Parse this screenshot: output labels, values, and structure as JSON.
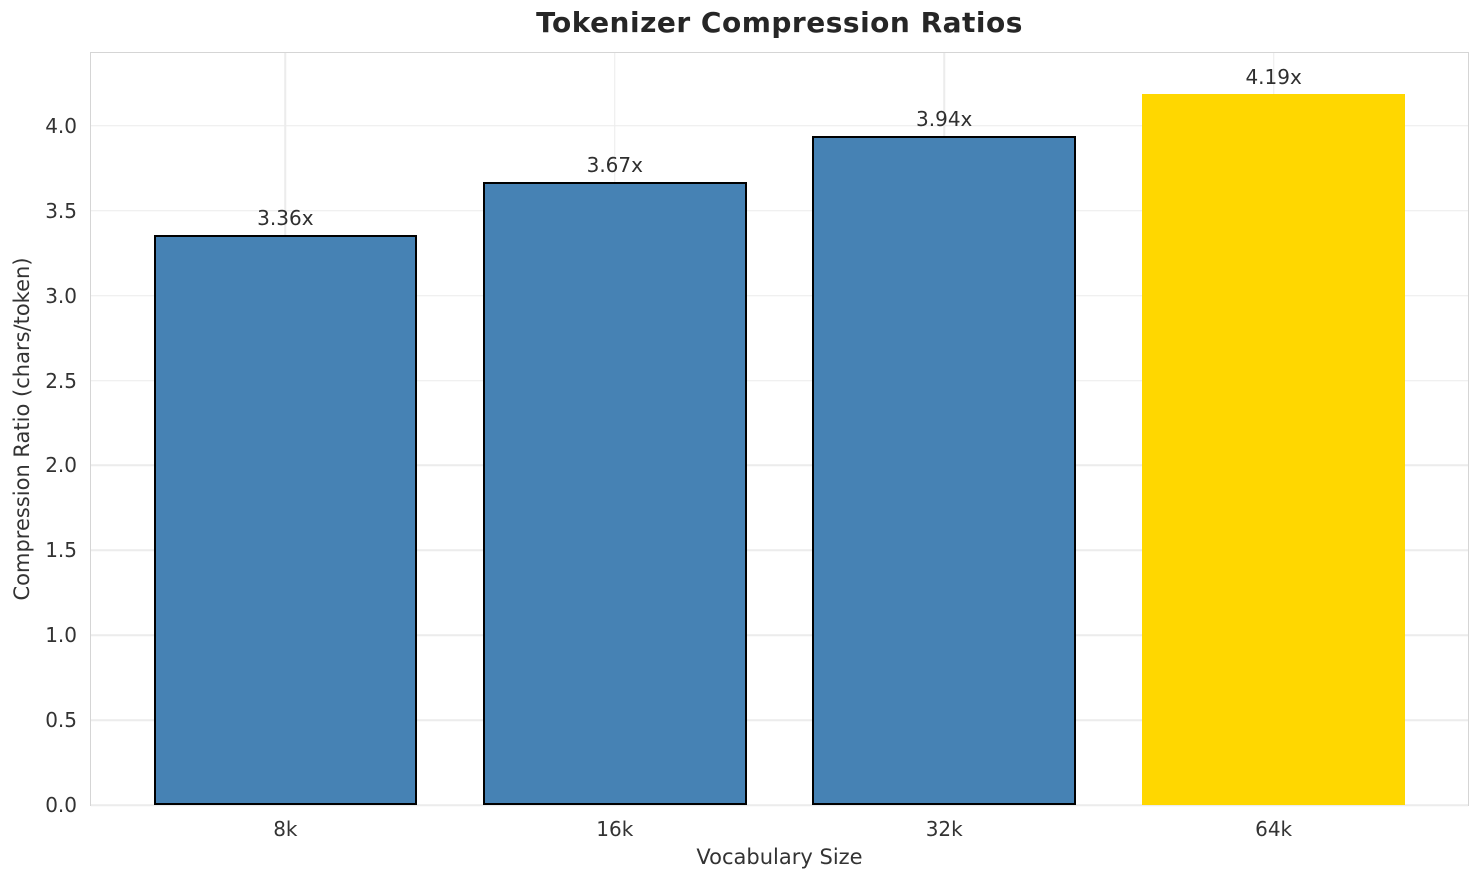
{
  "chart_data": {
    "type": "bar",
    "title": "Tokenizer Compression Ratios",
    "xlabel": "Vocabulary Size",
    "ylabel": "Compression Ratio (chars/token)",
    "categories": [
      "8k",
      "16k",
      "32k",
      "64k"
    ],
    "values": [
      3.36,
      3.67,
      3.94,
      4.19
    ],
    "value_labels": [
      "3.36x",
      "3.67x",
      "3.94x",
      "4.19x"
    ],
    "bar_colors": [
      "#4682B4",
      "#4682B4",
      "#4682B4",
      "#FFD700"
    ],
    "bar_edge_colors": [
      "#000000",
      "#000000",
      "#000000",
      "#FFD700"
    ],
    "bar_width": 0.8,
    "yticks": [
      0.0,
      0.5,
      1.0,
      1.5,
      2.0,
      2.5,
      3.0,
      3.5,
      4.0
    ],
    "ytick_labels": [
      "0.0",
      "0.5",
      "1.0",
      "1.5",
      "2.0",
      "2.5",
      "3.0",
      "3.5",
      "4.0"
    ],
    "ylim": [
      0,
      4.43
    ],
    "xlim": [
      -0.59,
      3.59
    ],
    "grid": true,
    "legend": null,
    "colors": {
      "grid": "#ececec",
      "spine": "#d5d5d5",
      "title_text": "#262626",
      "tick_text": "#333333",
      "highlight_bar": "#FFD700",
      "default_bar": "#4682B4"
    }
  }
}
